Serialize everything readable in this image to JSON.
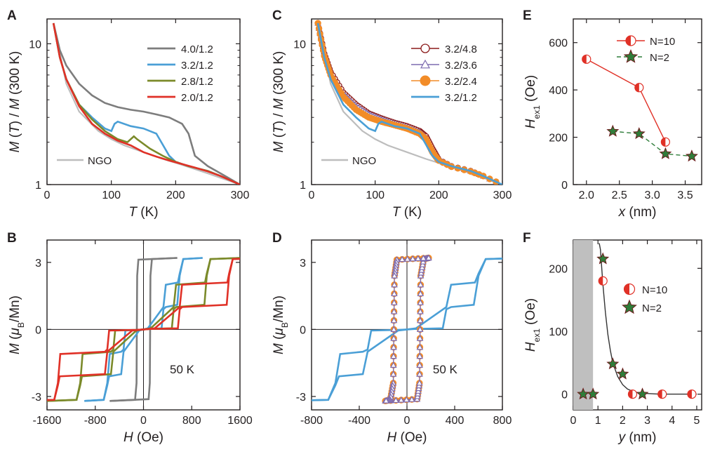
{
  "colors": {
    "gray": "#7d7d7d",
    "blue": "#4a9fd6",
    "olive": "#7b8a2a",
    "red": "#e03127",
    "ngo": "#bdbdbd",
    "maroon": "#8b1a1a",
    "violet": "#7d6bb0",
    "orange": "#f28c28",
    "green": "#2f7d3a",
    "redline": "#e03127",
    "shade": "#bfbfbf"
  },
  "chart_data": [
    {
      "panel": "A",
      "type": "line",
      "xlabel_italic": "T",
      "xlabel_rest": " (K)",
      "ylabel": "M (T) / M (300 K)",
      "ylabel_parts": [
        "M",
        " (",
        "T",
        ") / ",
        "M",
        " (300 K)"
      ],
      "xlim": [
        0,
        300
      ],
      "ylim": [
        1,
        15
      ],
      "yscale": "log",
      "xticks": [
        "0",
        "100",
        "200",
        "300"
      ],
      "yticks": [
        "1",
        "10"
      ],
      "legend_position": "top-right",
      "series": [
        {
          "name": "4.0/1.2",
          "color": "gray",
          "x": [
            10,
            20,
            30,
            50,
            70,
            90,
            110,
            130,
            150,
            170,
            190,
            210,
            220,
            230,
            250,
            270,
            300
          ],
          "y": [
            14,
            9,
            7,
            5.2,
            4.3,
            3.8,
            3.55,
            3.4,
            3.3,
            3.15,
            3.0,
            2.7,
            2.3,
            1.6,
            1.35,
            1.2,
            1.0
          ]
        },
        {
          "name": "3.2/1.2",
          "color": "blue",
          "x": [
            10,
            20,
            30,
            50,
            70,
            90,
            100,
            105,
            110,
            130,
            150,
            170,
            190,
            200,
            220,
            250,
            270,
            300
          ],
          "y": [
            14,
            8,
            5.6,
            3.7,
            3.0,
            2.5,
            2.4,
            2.7,
            2.8,
            2.6,
            2.5,
            2.3,
            1.6,
            1.45,
            1.35,
            1.25,
            1.15,
            1.0
          ]
        },
        {
          "name": "2.8/1.2",
          "color": "olive",
          "x": [
            10,
            20,
            30,
            50,
            70,
            90,
            110,
            125,
            135,
            140,
            160,
            180,
            200,
            220,
            250,
            270,
            300
          ],
          "y": [
            14,
            8,
            5.6,
            3.7,
            2.9,
            2.4,
            2.1,
            2.0,
            2.2,
            2.1,
            1.8,
            1.6,
            1.45,
            1.35,
            1.25,
            1.15,
            1.0
          ]
        },
        {
          "name": "2.0/1.2",
          "color": "red",
          "x": [
            10,
            20,
            30,
            50,
            70,
            90,
            110,
            130,
            150,
            170,
            190,
            210,
            230,
            250,
            270,
            300
          ],
          "y": [
            14,
            8,
            5.6,
            3.6,
            2.7,
            2.3,
            2.05,
            1.9,
            1.7,
            1.58,
            1.48,
            1.4,
            1.32,
            1.24,
            1.15,
            1.0
          ]
        }
      ],
      "reference": {
        "name": "NGO",
        "color": "ngo",
        "x": [
          10,
          30,
          50,
          80,
          100,
          120,
          150,
          180,
          210,
          250,
          300
        ],
        "y": [
          14,
          5.2,
          3.3,
          2.4,
          2.1,
          1.9,
          1.7,
          1.52,
          1.38,
          1.2,
          1.0
        ]
      }
    },
    {
      "panel": "B",
      "type": "line",
      "xlabel_italic": "H",
      "xlabel_rest": " (Oe)",
      "ylabel_parts": [
        "M",
        " (",
        "μ",
        "B",
        "/Mn)"
      ],
      "xlim": [
        -1600,
        1600
      ],
      "ylim": [
        -3.6,
        4.0
      ],
      "xticks": [
        "-1600",
        "-800",
        "0",
        "800",
        "1600"
      ],
      "yticks": [
        "-3",
        "0",
        "3"
      ],
      "annotation": "50 K",
      "loops": [
        {
          "color": "gray",
          "coercive": [
            -150,
            110
          ],
          "steps": [],
          "sat_field": 400
        },
        {
          "color": "blue",
          "coercive": [
            -480,
            480
          ],
          "steps": [
            330,
            600
          ],
          "sat_field": 700
        },
        {
          "color": "olive",
          "coercive": [
            -800,
            800
          ],
          "steps": [
            500,
            1050
          ],
          "sat_field": 1150
        },
        {
          "color": "red",
          "coercive": [
            -1250,
            1250
          ],
          "steps": [
            600,
            1420
          ],
          "sat_field": 1550
        }
      ]
    },
    {
      "panel": "C",
      "type": "line",
      "xlabel_italic": "T",
      "xlabel_rest": " (K)",
      "ylabel": "M (T) / M (300 K)",
      "ylabel_parts": [
        "M",
        " (",
        "T",
        ") / ",
        "M",
        " (300 K)"
      ],
      "xlim": [
        0,
        300
      ],
      "ylim": [
        1,
        15
      ],
      "yscale": "log",
      "xticks": [
        "0",
        "100",
        "200",
        "300"
      ],
      "yticks": [
        "1",
        "10"
      ],
      "legend_position": "top-right",
      "series": [
        {
          "name": "3.2/4.8",
          "color": "maroon",
          "marker": "open-circle",
          "x": [
            10,
            20,
            30,
            50,
            70,
            90,
            110,
            130,
            150,
            170,
            180,
            190,
            200,
            220,
            250,
            270,
            300
          ],
          "y": [
            14,
            8.5,
            6.3,
            4.5,
            3.7,
            3.2,
            2.95,
            2.75,
            2.6,
            2.4,
            2.2,
            1.8,
            1.5,
            1.35,
            1.25,
            1.15,
            1.0
          ]
        },
        {
          "name": "3.2/3.6",
          "color": "violet",
          "marker": "open-triangle",
          "x": [
            10,
            20,
            30,
            50,
            70,
            90,
            110,
            130,
            150,
            170,
            180,
            190,
            200,
            220,
            250,
            270,
            300
          ],
          "y": [
            14,
            8.5,
            6.2,
            4.4,
            3.6,
            3.15,
            2.9,
            2.7,
            2.55,
            2.35,
            2.15,
            1.75,
            1.5,
            1.35,
            1.25,
            1.15,
            1.0
          ]
        },
        {
          "name": "3.2/2.4",
          "color": "orange",
          "marker": "filled-circle",
          "x": [
            10,
            20,
            30,
            50,
            70,
            90,
            110,
            130,
            150,
            170,
            180,
            190,
            200,
            220,
            250,
            270,
            300
          ],
          "y": [
            14,
            8.2,
            6.0,
            4.2,
            3.4,
            3.0,
            2.8,
            2.65,
            2.5,
            2.3,
            2.1,
            1.7,
            1.48,
            1.34,
            1.24,
            1.15,
            1.0
          ]
        },
        {
          "name": "3.2/1.2",
          "color": "blue",
          "x": [
            10,
            20,
            30,
            50,
            70,
            90,
            100,
            105,
            110,
            130,
            150,
            170,
            190,
            200,
            220,
            250,
            270,
            300
          ],
          "y": [
            14,
            8,
            5.6,
            3.7,
            3.0,
            2.5,
            2.4,
            2.7,
            2.8,
            2.6,
            2.5,
            2.3,
            1.6,
            1.45,
            1.35,
            1.25,
            1.15,
            1.0
          ]
        }
      ],
      "reference": {
        "name": "NGO",
        "color": "ngo",
        "x": [
          10,
          30,
          50,
          80,
          100,
          120,
          150,
          180,
          210,
          250,
          300
        ],
        "y": [
          14,
          5.2,
          3.3,
          2.4,
          2.1,
          1.9,
          1.7,
          1.52,
          1.38,
          1.2,
          1.0
        ]
      }
    },
    {
      "panel": "D",
      "type": "line",
      "xlabel_italic": "H",
      "xlabel_rest": " (Oe)",
      "ylabel_parts": [
        "M",
        " (",
        "μ",
        "B",
        "/Mn)"
      ],
      "xlim": [
        -800,
        800
      ],
      "ylim": [
        -3.6,
        4.0
      ],
      "xticks": [
        "-800",
        "-400",
        "0",
        "400",
        "800"
      ],
      "yticks": [
        "-3",
        "0",
        "3"
      ],
      "annotation": "50 K",
      "loops": [
        {
          "color": "blue",
          "coercive": [
            -500,
            500
          ],
          "steps": [
            330,
            600
          ],
          "sat_field": 720
        },
        {
          "color": "orange",
          "coercive": [
            -110,
            110
          ],
          "steps": [],
          "sat_field": 130,
          "marker": "filled-circle"
        },
        {
          "color": "violet",
          "coercive": [
            -110,
            110
          ],
          "steps": [],
          "sat_field": 130,
          "marker": "open-triangle"
        }
      ]
    },
    {
      "panel": "E",
      "type": "scatter",
      "xlabel_italic": "x",
      "xlabel_rest": " (nm)",
      "ylabel_parts": [
        "H",
        "ex1",
        " (Oe)"
      ],
      "xlim": [
        1.8,
        3.75
      ],
      "ylim": [
        0,
        700
      ],
      "xticks": [
        "2.0",
        "2.5",
        "3.0",
        "3.5"
      ],
      "yticks": [
        "0",
        "200",
        "400",
        "600"
      ],
      "legend_position": "top-right",
      "series": [
        {
          "name": "N=10",
          "marker": "half-circle",
          "color": "redline",
          "x": [
            2.0,
            2.8,
            3.2
          ],
          "y": [
            530,
            410,
            180
          ]
        },
        {
          "name": "N=2",
          "marker": "star",
          "color": "green",
          "x": [
            2.4,
            2.8,
            3.2,
            3.6
          ],
          "y": [
            225,
            215,
            130,
            120
          ]
        }
      ]
    },
    {
      "panel": "F",
      "type": "scatter",
      "xlabel_italic": "y",
      "xlabel_rest": " (nm)",
      "ylabel_parts": [
        "H",
        "ex1",
        " (Oe)"
      ],
      "xlim": [
        0,
        5.2
      ],
      "ylim": [
        -25,
        245
      ],
      "xticks": [
        "0",
        "1",
        "2",
        "3",
        "4",
        "5"
      ],
      "yticks": [
        "0",
        "100",
        "200"
      ],
      "shaded_region": [
        0,
        0.8
      ],
      "legend_position": "right",
      "series": [
        {
          "name": "N=10",
          "marker": "half-circle",
          "x": [
            1.2,
            2.4,
            3.6,
            4.8
          ],
          "y": [
            180,
            0,
            0,
            0
          ]
        },
        {
          "name": "N=2",
          "marker": "star",
          "x": [
            0.4,
            0.8,
            1.2,
            1.6,
            2.0,
            2.8
          ],
          "y": [
            0,
            0,
            215,
            48,
            32,
            0
          ]
        }
      ],
      "fit": {
        "x": [
          1.05,
          1.1,
          1.2,
          1.3,
          1.4,
          1.5,
          1.6,
          1.8,
          2.0,
          2.2,
          2.5,
          3.0,
          3.5,
          4.0,
          4.5,
          5.0
        ],
        "y": [
          240,
          230,
          175,
          130,
          95,
          70,
          50,
          28,
          15,
          8,
          3,
          1,
          0,
          0,
          0,
          0
        ]
      }
    }
  ]
}
